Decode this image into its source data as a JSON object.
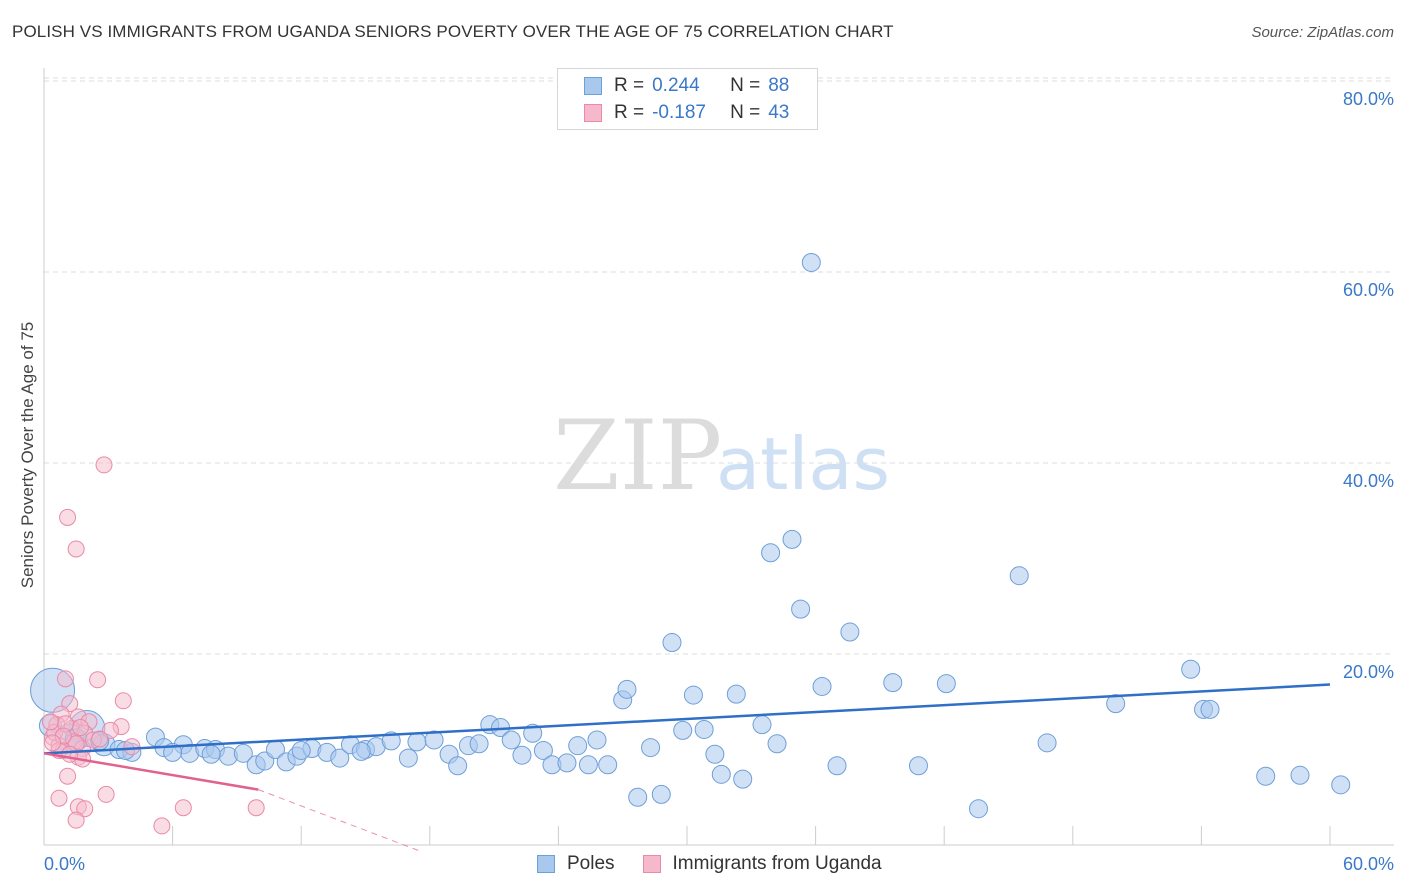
{
  "header": {
    "title": "POLISH VS IMMIGRANTS FROM UGANDA SENIORS POVERTY OVER THE AGE OF 75 CORRELATION CHART",
    "source": "Source: ZipAtlas.com"
  },
  "watermark": {
    "zip": "ZIP",
    "atlas": "atlas"
  },
  "colors": {
    "poles_fill": "#a9c8ee",
    "poles_stroke": "#6f9fd8",
    "poles_line": "#2f6fc7",
    "uganda_fill": "#f6b9cc",
    "uganda_stroke": "#e88aa8",
    "uganda_line": "#e0628d",
    "grid": "#dddddd",
    "tick_text": "#3a78c9"
  },
  "legend": {
    "rows": [
      {
        "r_label": "R =",
        "r_value": "0.244",
        "n_label": "N =",
        "n_value": "88"
      },
      {
        "r_label": "R =",
        "r_value": "-0.187",
        "n_label": "N =",
        "n_value": "43"
      }
    ]
  },
  "bottom_legend": {
    "series": [
      "Poles",
      "Immigrants from Uganda"
    ]
  },
  "chart_data": {
    "type": "scatter",
    "title": "POLISH VS IMMIGRANTS FROM UGANDA SENIORS POVERTY OVER THE AGE OF 75 CORRELATION CHART",
    "xlabel": "",
    "ylabel": "Seniors Poverty Over the Age of 75",
    "xlim": [
      0,
      60
    ],
    "ylim": [
      0,
      82
    ],
    "x_tick_labels": [
      "0.0%",
      "60.0%"
    ],
    "y_ticks": [
      20,
      40,
      60,
      80
    ],
    "y_tick_labels": [
      "20.0%",
      "40.0%",
      "60.0%",
      "80.0%"
    ],
    "grid": true,
    "legend_position": "top-center",
    "series": [
      {
        "name": "Poles",
        "r": 0.244,
        "n": 88,
        "trend": {
          "x": [
            0,
            60
          ],
          "y": [
            9.6,
            16.8
          ],
          "style": "solid"
        },
        "points": [
          [
            0.4,
            16.2,
            22
          ],
          [
            2.0,
            12.2,
            18
          ],
          [
            1.2,
            11.2,
            14
          ],
          [
            2.8,
            10.5,
            11
          ],
          [
            3.5,
            10.0,
            9
          ],
          [
            4.1,
            9.7,
            9
          ],
          [
            5.2,
            11.3,
            9
          ],
          [
            5.6,
            10.2,
            9
          ],
          [
            6.5,
            10.5,
            9
          ],
          [
            6.8,
            9.6,
            9
          ],
          [
            7.5,
            10.1,
            9
          ],
          [
            8.0,
            10.0,
            9
          ],
          [
            8.6,
            9.3,
            9
          ],
          [
            9.3,
            9.6,
            9
          ],
          [
            9.9,
            8.4,
            9
          ],
          [
            10.3,
            8.8,
            9
          ],
          [
            10.8,
            10.0,
            9
          ],
          [
            11.3,
            8.7,
            9
          ],
          [
            11.8,
            9.3,
            9
          ],
          [
            12.5,
            10.1,
            9
          ],
          [
            13.2,
            9.7,
            9
          ],
          [
            13.8,
            9.1,
            9
          ],
          [
            14.3,
            10.5,
            9
          ],
          [
            15.0,
            10.0,
            9
          ],
          [
            15.5,
            10.3,
            9
          ],
          [
            16.2,
            10.9,
            9
          ],
          [
            17.0,
            9.1,
            9
          ],
          [
            17.4,
            10.8,
            9
          ],
          [
            18.2,
            11.0,
            9
          ],
          [
            18.9,
            9.5,
            9
          ],
          [
            19.3,
            8.3,
            9
          ],
          [
            19.8,
            10.4,
            9
          ],
          [
            20.3,
            10.6,
            9
          ],
          [
            20.8,
            12.6,
            9
          ],
          [
            21.3,
            12.3,
            9
          ],
          [
            21.8,
            11.0,
            9
          ],
          [
            22.3,
            9.4,
            9
          ],
          [
            22.8,
            11.7,
            9
          ],
          [
            23.3,
            9.9,
            9
          ],
          [
            23.7,
            8.4,
            9
          ],
          [
            24.4,
            8.6,
            9
          ],
          [
            24.9,
            10.4,
            9
          ],
          [
            25.4,
            8.4,
            9
          ],
          [
            25.8,
            11.0,
            9
          ],
          [
            26.3,
            8.4,
            9
          ],
          [
            27.0,
            15.2,
            9
          ],
          [
            27.2,
            16.3,
            9
          ],
          [
            27.7,
            5.0,
            9
          ],
          [
            28.3,
            10.2,
            9
          ],
          [
            28.8,
            5.3,
            9
          ],
          [
            29.3,
            21.2,
            9
          ],
          [
            29.8,
            12.0,
            9
          ],
          [
            30.3,
            15.7,
            9
          ],
          [
            30.8,
            12.1,
            9
          ],
          [
            31.3,
            9.5,
            9
          ],
          [
            31.6,
            7.4,
            9
          ],
          [
            32.3,
            15.8,
            9
          ],
          [
            32.6,
            6.9,
            9
          ],
          [
            33.5,
            12.6,
            9
          ],
          [
            33.9,
            30.6,
            9
          ],
          [
            34.2,
            10.6,
            9
          ],
          [
            34.9,
            32.0,
            9
          ],
          [
            35.3,
            24.7,
            9
          ],
          [
            35.8,
            61.0,
            9
          ],
          [
            36.3,
            16.6,
            9
          ],
          [
            37.0,
            8.3,
            9
          ],
          [
            37.6,
            22.3,
            9
          ],
          [
            39.6,
            17.0,
            9
          ],
          [
            40.8,
            8.3,
            9
          ],
          [
            42.1,
            16.9,
            9
          ],
          [
            43.6,
            3.8,
            9
          ],
          [
            45.5,
            28.2,
            9
          ],
          [
            46.8,
            10.7,
            9
          ],
          [
            50.0,
            14.8,
            9
          ],
          [
            53.5,
            18.4,
            9
          ],
          [
            54.1,
            14.2,
            9
          ],
          [
            54.4,
            14.2,
            9
          ],
          [
            57.0,
            7.2,
            9
          ],
          [
            58.6,
            7.3,
            9
          ],
          [
            60.5,
            6.3,
            9
          ],
          [
            0.3,
            12.5,
            11
          ],
          [
            1.5,
            11.0,
            11
          ],
          [
            2.6,
            10.9,
            9
          ],
          [
            3.8,
            9.9,
            9
          ],
          [
            6.0,
            9.7,
            9
          ],
          [
            7.8,
            9.5,
            9
          ],
          [
            12.0,
            9.9,
            9
          ],
          [
            14.8,
            9.8,
            9
          ]
        ]
      },
      {
        "name": "Immigrants from Uganda",
        "r": -0.187,
        "n": 43,
        "trend": {
          "x": [
            0,
            10
          ],
          "y": [
            9.6,
            5.8
          ],
          "style": "solid",
          "extension": {
            "x": [
              10,
              17.5
            ],
            "y": [
              5.8,
              -0.6
            ],
            "style": "dashed"
          }
        },
        "points": [
          [
            2.8,
            39.8
          ],
          [
            1.1,
            34.3
          ],
          [
            1.5,
            31.0
          ],
          [
            2.5,
            17.3
          ],
          [
            1.0,
            17.4
          ],
          [
            3.7,
            15.1
          ],
          [
            1.2,
            14.8
          ],
          [
            0.8,
            13.7
          ],
          [
            1.6,
            13.4
          ],
          [
            2.1,
            12.9
          ],
          [
            0.6,
            12.6
          ],
          [
            1.3,
            12.2
          ],
          [
            1.9,
            11.7
          ],
          [
            0.4,
            11.3
          ],
          [
            1.4,
            10.8
          ],
          [
            0.7,
            10.4
          ],
          [
            1.8,
            10.1
          ],
          [
            0.9,
            9.9
          ],
          [
            0.5,
            11.8
          ],
          [
            1.7,
            12.3
          ],
          [
            2.3,
            11.0
          ],
          [
            1.0,
            12.7
          ],
          [
            1.5,
            10.6
          ],
          [
            0.3,
            12.9
          ],
          [
            3.6,
            12.4
          ],
          [
            1.6,
            9.2
          ],
          [
            0.7,
            9.9
          ],
          [
            1.1,
            7.2
          ],
          [
            2.9,
            5.3
          ],
          [
            0.7,
            4.9
          ],
          [
            1.6,
            4.0
          ],
          [
            1.9,
            3.8
          ],
          [
            1.5,
            2.6
          ],
          [
            6.5,
            3.9
          ],
          [
            5.5,
            2.0
          ],
          [
            9.9,
            3.9
          ],
          [
            4.1,
            10.3
          ],
          [
            3.1,
            12.0
          ],
          [
            0.9,
            11.4
          ],
          [
            2.6,
            11.1
          ],
          [
            1.8,
            9.0
          ],
          [
            0.4,
            10.7
          ],
          [
            1.2,
            9.5
          ]
        ]
      }
    ]
  }
}
